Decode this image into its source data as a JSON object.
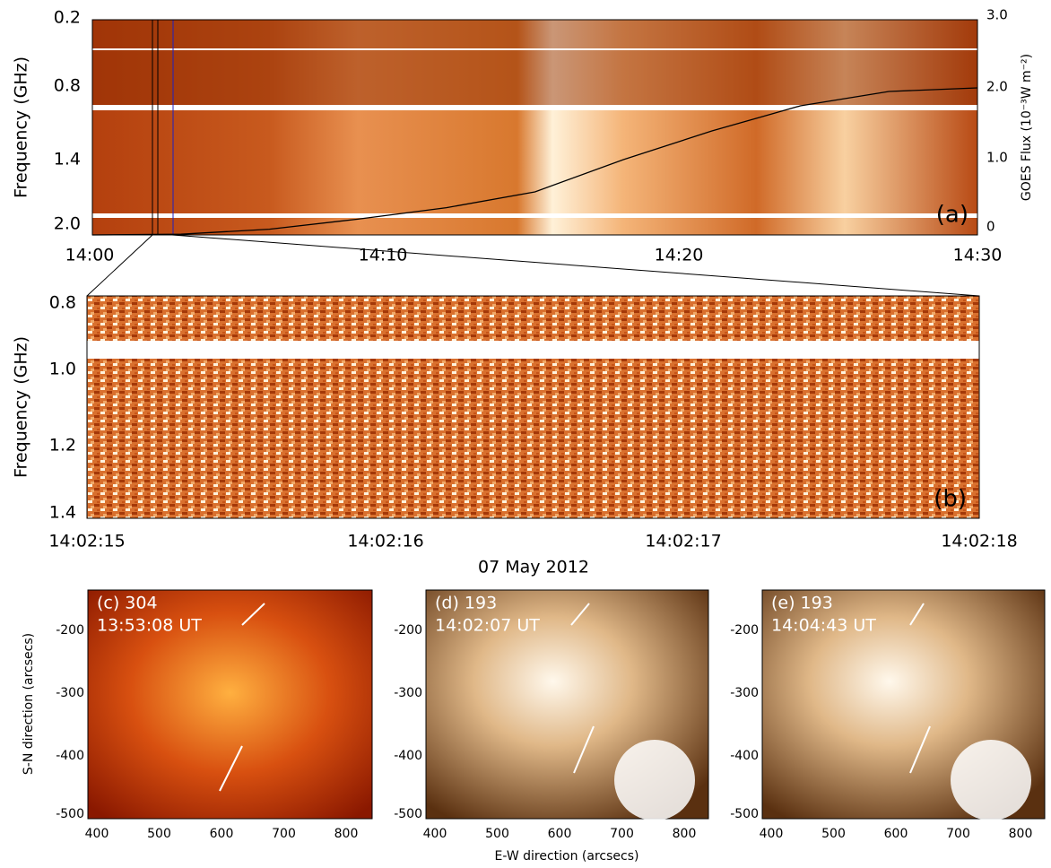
{
  "panel_a": {
    "label": "(a)",
    "ylabel": "Frequency (GHz)",
    "y2label": "GOES Flux (10⁻³W m⁻²)",
    "yticks": [
      "0.2",
      "0.8",
      "1.4",
      "2.0"
    ],
    "y2ticks": [
      "3.0",
      "2.0",
      "1.0",
      "0"
    ],
    "xticks": [
      "14:00",
      "14:10",
      "14:20",
      "14:30"
    ],
    "goes_flux": {
      "x": [
        0,
        3,
        6,
        9,
        12,
        15,
        18,
        21,
        24,
        27,
        30
      ],
      "values": [
        0,
        0.01,
        0.08,
        0.22,
        0.38,
        0.6,
        1.05,
        1.45,
        1.8,
        2.0,
        2.05
      ],
      "xlim": [
        0,
        30
      ],
      "ylim": [
        0,
        3
      ]
    }
  },
  "panel_b": {
    "label": "(b)",
    "ylabel": "Frequency (GHz)",
    "yticks": [
      "0.8",
      "1.0",
      "1.2",
      "1.4"
    ],
    "xticks": [
      "14:02:15",
      "14:02:16",
      "14:02:17",
      "14:02:18"
    ],
    "date": "07 May 2012"
  },
  "images": [
    {
      "label": "(c) 304",
      "time": "13:53:08 UT"
    },
    {
      "label": "(d) 193",
      "time": "14:02:07 UT"
    },
    {
      "label": "(e) 193",
      "time": "14:04:43 UT"
    }
  ],
  "image_axes": {
    "ylabel": "S-N direction (arcsecs)",
    "xlabel": "E-W direction (arcsecs)",
    "yticks": [
      "-200",
      "-300",
      "-400",
      "-500"
    ],
    "xticks": [
      "400",
      "500",
      "600",
      "700",
      "800"
    ]
  }
}
